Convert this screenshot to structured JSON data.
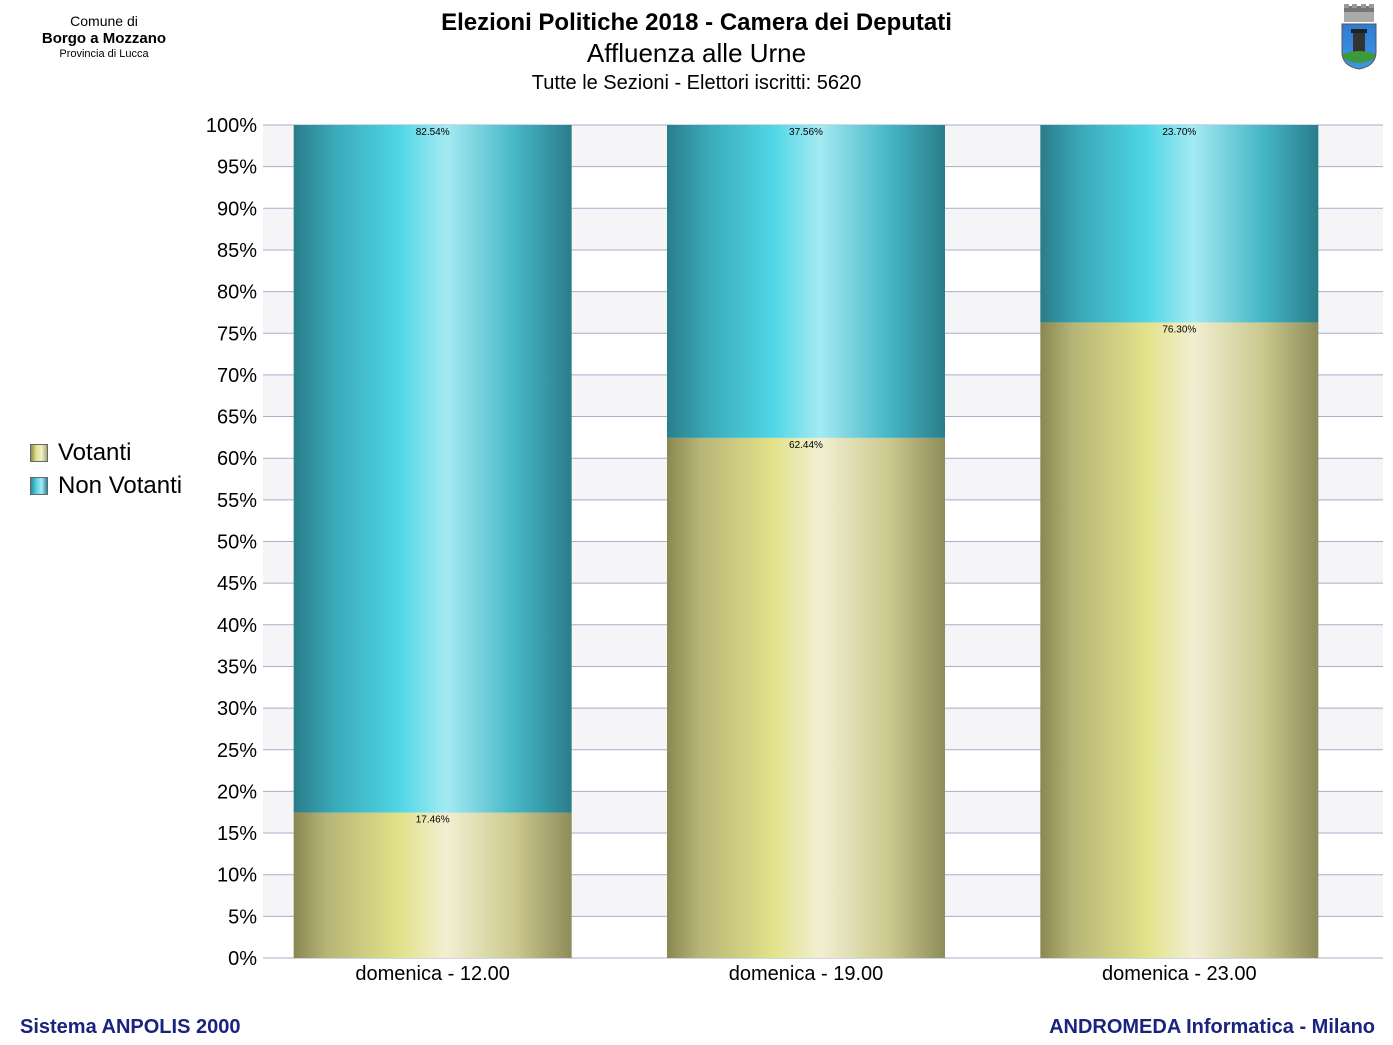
{
  "header": {
    "comune_line1": "Comune di",
    "comune_line2": "Borgo a Mozzano",
    "comune_line3": "Provincia di Lucca",
    "title": "Elezioni Politiche 2018 - Camera dei Deputati",
    "subtitle": "Affluenza alle Urne",
    "subtitle2": "Tutte le Sezioni - Elettori iscritti: 5620"
  },
  "footer": {
    "left": "Sistema ANPOLIS 2000",
    "right": "ANDROMEDA Informatica - Milano"
  },
  "chart_data": {
    "type": "bar",
    "stacked": true,
    "categories": [
      "domenica - 12.00",
      "domenica - 19.00",
      "domenica - 23.00"
    ],
    "series": [
      {
        "name": "Votanti",
        "values": [
          17.46,
          62.44,
          76.3
        ],
        "labels": [
          "17.46%",
          "62.44%",
          "76.30%"
        ],
        "color": "#d8d68a"
      },
      {
        "name": "Non Votanti",
        "values": [
          82.54,
          37.56,
          23.7
        ],
        "labels": [
          "82.54%",
          "37.56%",
          "23.70%"
        ],
        "color": "#4fd4e4"
      }
    ],
    "ylim": [
      0,
      100
    ],
    "yticks": [
      "0%",
      "5%",
      "10%",
      "15%",
      "20%",
      "25%",
      "30%",
      "35%",
      "40%",
      "45%",
      "50%",
      "55%",
      "60%",
      "65%",
      "70%",
      "75%",
      "80%",
      "85%",
      "90%",
      "95%",
      "100%"
    ],
    "grid": true,
    "legend_position": "left"
  }
}
